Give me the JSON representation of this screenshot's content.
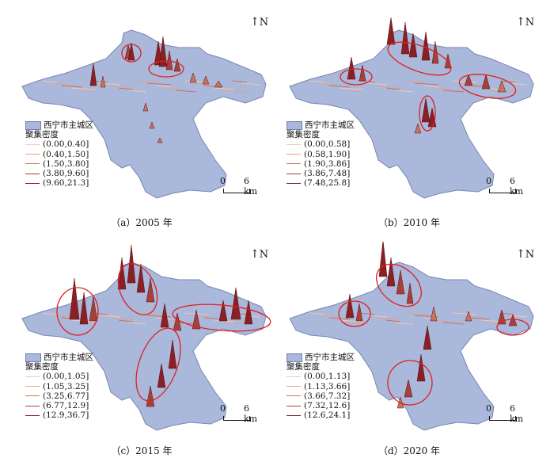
{
  "north_label": "N",
  "scale": {
    "zero": "0",
    "label": "6 km"
  },
  "legend_area_label": "西宁市主城区",
  "legend_density_title": "聚集密度",
  "colors": {
    "area_fill": "#a9b8db",
    "area_stroke": "#7787b3",
    "density_classes": [
      "#f0c9b8",
      "#e0a38b",
      "#c8735f",
      "#a8403a",
      "#8a1f24"
    ],
    "highlight_ellipse": "#e02020"
  },
  "panels": [
    {
      "caption": "（a）2005 年",
      "classes": [
        "(0.00,0.40]",
        "(0.40,1.50]",
        "(1.50,3.80]",
        "(3.80,9.60]",
        "(9.60,21.3]"
      ]
    },
    {
      "caption": "（b）2010 年",
      "classes": [
        "(0.00,0.58]",
        "(0.58,1.90]",
        "(1.90,3.86]",
        "(3.86,7.48]",
        "(7.48,25.8]"
      ]
    },
    {
      "caption": "（c）2015 年",
      "classes": [
        "(0.00,1.05]",
        "(1.05,3.25]",
        "(3.25,6.77]",
        "(6.77,12.9]",
        "(12.9,36.7]"
      ]
    },
    {
      "caption": "（d）2020 年",
      "classes": [
        "(0.00,1.13]",
        "(1.13,3.66]",
        "(3.66,7.32]",
        "(7.32,12.6]",
        "(12.6,24.1]"
      ]
    }
  ]
}
